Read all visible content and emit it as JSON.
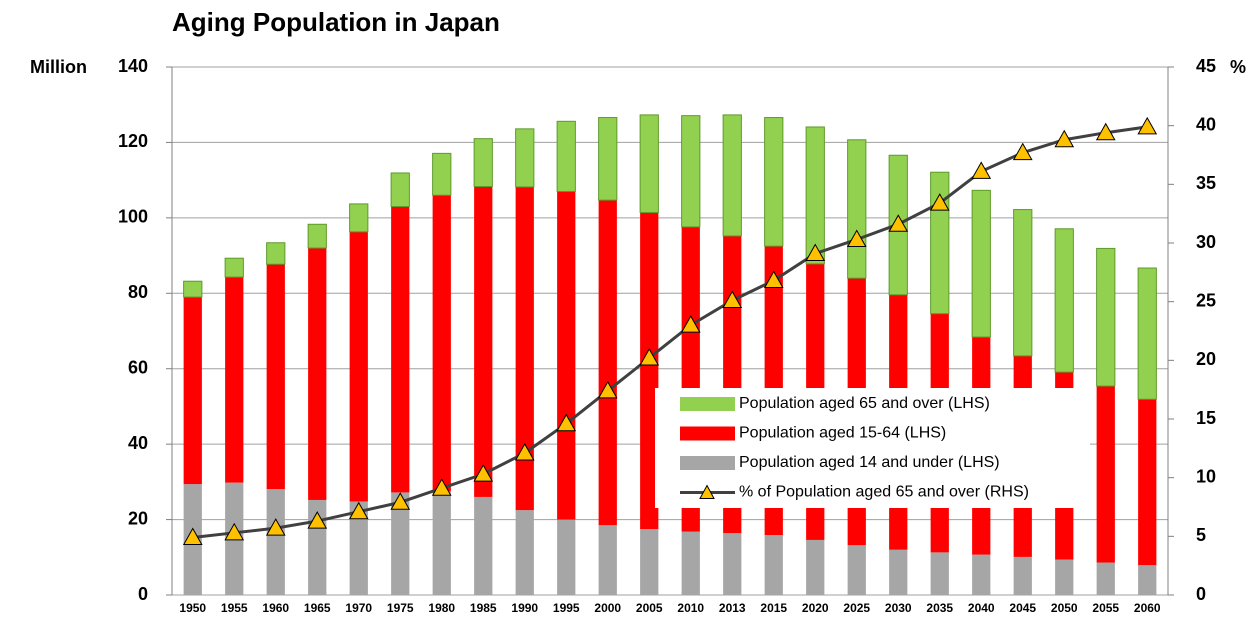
{
  "chart_data": {
    "type": "stacked-bar-line",
    "title": "Aging Population in Japan",
    "ylabel": "Million",
    "y2label": "%",
    "categories": [
      "1950",
      "1955",
      "1960",
      "1965",
      "1970",
      "1975",
      "1980",
      "1985",
      "1990",
      "1995",
      "2000",
      "2005",
      "2010",
      "2013",
      "2015",
      "2020",
      "2025",
      "2030",
      "2035",
      "2040",
      "2045",
      "2050",
      "2055",
      "2060"
    ],
    "series": [
      {
        "name": "Population aged 14 and under (LHS)",
        "color": "#a6a6a6",
        "values": [
          29.4,
          29.8,
          28.1,
          25.2,
          24.8,
          27.2,
          27.5,
          26.0,
          22.5,
          20.0,
          18.5,
          17.5,
          16.8,
          16.4,
          15.9,
          14.6,
          13.2,
          12.0,
          11.3,
          10.7,
          10.1,
          9.4,
          8.6,
          7.9
        ]
      },
      {
        "name": "Population aged 15-64 (LHS)",
        "color": "#ff0000",
        "values": [
          49.6,
          54.5,
          59.6,
          66.8,
          71.5,
          75.8,
          78.5,
          82.3,
          85.7,
          87.0,
          86.2,
          83.9,
          80.8,
          78.8,
          76.6,
          73.2,
          70.8,
          67.6,
          63.3,
          57.7,
          53.3,
          49.7,
          46.8,
          44.0
        ]
      },
      {
        "name": "Population aged 65 and over (LHS)",
        "color": "#92d050",
        "values": [
          4.2,
          5.0,
          5.7,
          6.3,
          7.4,
          8.9,
          11.1,
          12.7,
          15.4,
          18.6,
          21.9,
          25.9,
          29.5,
          32.1,
          34.1,
          36.3,
          36.7,
          37.0,
          37.5,
          38.9,
          38.8,
          38.0,
          36.5,
          34.8
        ]
      },
      {
        "name": "% of Population aged 65 and over (RHS)",
        "color": "#404040",
        "marker_color": "#ffc000",
        "axis": "y2",
        "values": [
          4.9,
          5.3,
          5.7,
          6.3,
          7.1,
          7.9,
          9.1,
          10.3,
          12.1,
          14.6,
          17.4,
          20.2,
          23.0,
          25.1,
          26.8,
          29.1,
          30.3,
          31.6,
          33.4,
          36.1,
          37.7,
          38.8,
          39.4,
          39.9
        ]
      }
    ],
    "ylim": [
      0,
      140
    ],
    "yticks": [
      0,
      20,
      40,
      60,
      80,
      100,
      120,
      140
    ],
    "y2lim": [
      0,
      45
    ],
    "y2ticks": [
      0,
      5,
      10,
      15,
      20,
      25,
      30,
      35,
      40,
      45
    ],
    "grid": true,
    "legend": "lower right"
  }
}
